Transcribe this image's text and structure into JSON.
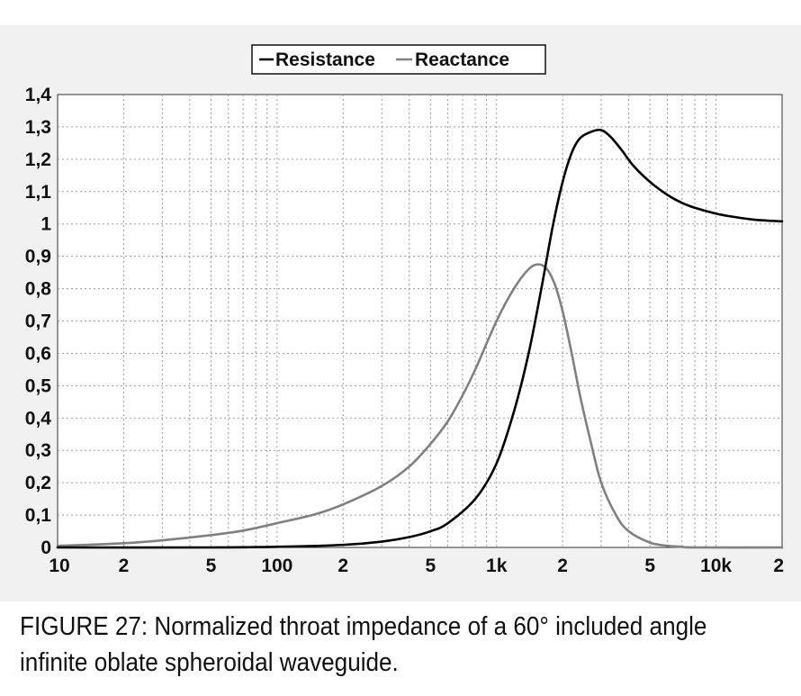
{
  "caption": {
    "label": "FIGURE 27:",
    "text": " Normalized throat impedance of a 60° included angle infinite oblate spheroidal waveguide."
  },
  "colors": {
    "panel_background": "#f1f1f1",
    "plot_background": "#ffffff",
    "grid": "#9a9a9a",
    "axis": "#333333",
    "resistance": "#000000",
    "reactance": "#808080"
  },
  "chart_data": {
    "type": "line",
    "title": "",
    "xlabel": "",
    "ylabel": "",
    "x_scale": "log",
    "xlim": [
      10,
      20000
    ],
    "ylim": [
      0,
      1.4
    ],
    "grid": true,
    "grid_style": "dotted",
    "legend_position": "top-center",
    "x_major_ticks": [
      {
        "value": 10,
        "label": "10"
      },
      {
        "value": 100,
        "label": "100"
      },
      {
        "value": 1000,
        "label": "1k"
      },
      {
        "value": 10000,
        "label": "10k"
      }
    ],
    "x_minor_ticks": [
      {
        "value": 20,
        "label": "2"
      },
      {
        "value": 50,
        "label": "5"
      },
      {
        "value": 200,
        "label": "2"
      },
      {
        "value": 500,
        "label": "5"
      },
      {
        "value": 2000,
        "label": "2"
      },
      {
        "value": 5000,
        "label": "5"
      },
      {
        "value": 20000,
        "label": "2"
      }
    ],
    "y_ticks": [
      {
        "value": 0,
        "label": "0"
      },
      {
        "value": 0.1,
        "label": "0,1"
      },
      {
        "value": 0.2,
        "label": "0,2"
      },
      {
        "value": 0.3,
        "label": "0,3"
      },
      {
        "value": 0.4,
        "label": "0,4"
      },
      {
        "value": 0.5,
        "label": "0,5"
      },
      {
        "value": 0.6,
        "label": "0,6"
      },
      {
        "value": 0.7,
        "label": "0,7"
      },
      {
        "value": 0.8,
        "label": "0,8"
      },
      {
        "value": 0.9,
        "label": "0,9"
      },
      {
        "value": 1.0,
        "label": "1"
      },
      {
        "value": 1.1,
        "label": "1,1"
      },
      {
        "value": 1.2,
        "label": "1,2"
      },
      {
        "value": 1.3,
        "label": "1,3"
      },
      {
        "value": 1.4,
        "label": "1,4"
      }
    ],
    "series": [
      {
        "name": "Resistance",
        "color": "#000000",
        "x": [
          10,
          50,
          100,
          200,
          300,
          400,
          500,
          600,
          800,
          1000,
          1200,
          1400,
          1600,
          1800,
          2000,
          2200,
          2400,
          2700,
          3000,
          3300,
          3700,
          4200,
          5000,
          6000,
          7000,
          8000,
          10000,
          12000,
          15000,
          20000
        ],
        "y": [
          0.0,
          0.0,
          0.002,
          0.008,
          0.018,
          0.032,
          0.05,
          0.075,
          0.15,
          0.26,
          0.42,
          0.6,
          0.8,
          0.99,
          1.13,
          1.22,
          1.265,
          1.285,
          1.29,
          1.27,
          1.23,
          1.18,
          1.13,
          1.09,
          1.065,
          1.05,
          1.032,
          1.022,
          1.013,
          1.008
        ]
      },
      {
        "name": "Reactance",
        "color": "#808080",
        "x": [
          10,
          20,
          30,
          50,
          70,
          100,
          150,
          200,
          300,
          400,
          500,
          600,
          700,
          800,
          1000,
          1200,
          1400,
          1550,
          1700,
          1850,
          2000,
          2200,
          2400,
          2700,
          3000,
          3500,
          4000,
          5000,
          6000,
          7000,
          8000,
          20000
        ],
        "y": [
          0.005,
          0.013,
          0.022,
          0.038,
          0.052,
          0.075,
          0.103,
          0.133,
          0.19,
          0.25,
          0.32,
          0.39,
          0.47,
          0.55,
          0.7,
          0.8,
          0.86,
          0.875,
          0.86,
          0.81,
          0.73,
          0.6,
          0.47,
          0.32,
          0.2,
          0.1,
          0.05,
          0.015,
          0.005,
          0.002,
          0.0,
          0.0
        ]
      }
    ]
  }
}
